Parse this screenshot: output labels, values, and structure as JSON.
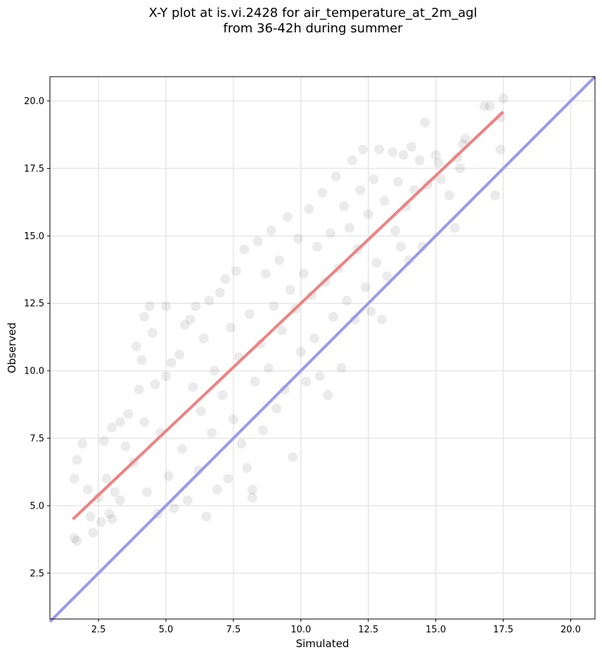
{
  "chart_data": {
    "type": "scatter",
    "title_line1": "X-Y plot at is.vi.2428 for air_temperature_at_2m_agl",
    "title_line2": "from 36-42h during summer",
    "xlabel": "Simulated",
    "ylabel": "Observed",
    "xlim": [
      0.7,
      20.9
    ],
    "ylim": [
      0.8,
      20.9
    ],
    "xticks": [
      2.5,
      5.0,
      7.5,
      10.0,
      12.5,
      15.0,
      17.5,
      20.0
    ],
    "yticks": [
      2.5,
      5.0,
      7.5,
      10.0,
      12.5,
      15.0,
      17.5,
      20.0
    ],
    "xtick_labels": [
      "2.5",
      "5.0",
      "7.5",
      "10.0",
      "12.5",
      "15.0",
      "17.5",
      "20.0"
    ],
    "ytick_labels": [
      "2.5",
      "5.0",
      "7.5",
      "10.0",
      "12.5",
      "15.0",
      "17.5",
      "20.0"
    ],
    "grid": true,
    "point_color": "#000000",
    "point_alpha": 0.08,
    "regression_line": {
      "color": "#f08080",
      "points": [
        [
          1.55,
          4.5
        ],
        [
          17.5,
          19.6
        ]
      ]
    },
    "identity_line": {
      "color": "#9999ee",
      "points": [
        [
          0.7,
          0.7
        ],
        [
          20.9,
          20.9
        ]
      ]
    },
    "points": [
      [
        1.6,
        3.8
      ],
      [
        1.7,
        3.7
      ],
      [
        1.6,
        6.0
      ],
      [
        1.7,
        6.7
      ],
      [
        1.9,
        7.3
      ],
      [
        2.1,
        5.6
      ],
      [
        2.2,
        4.6
      ],
      [
        2.3,
        4.0
      ],
      [
        2.5,
        5.3
      ],
      [
        2.6,
        4.4
      ],
      [
        2.7,
        7.4
      ],
      [
        2.8,
        6.0
      ],
      [
        2.9,
        4.7
      ],
      [
        3.0,
        4.5
      ],
      [
        3.0,
        7.9
      ],
      [
        3.1,
        5.5
      ],
      [
        3.3,
        5.2
      ],
      [
        3.3,
        8.1
      ],
      [
        3.5,
        7.2
      ],
      [
        3.6,
        8.4
      ],
      [
        3.8,
        6.6
      ],
      [
        3.9,
        10.9
      ],
      [
        4.0,
        9.3
      ],
      [
        4.1,
        10.4
      ],
      [
        4.2,
        8.1
      ],
      [
        4.2,
        12.0
      ],
      [
        4.3,
        5.5
      ],
      [
        4.4,
        12.4
      ],
      [
        4.5,
        11.4
      ],
      [
        4.6,
        9.5
      ],
      [
        4.7,
        4.7
      ],
      [
        4.8,
        7.7
      ],
      [
        5.0,
        12.4
      ],
      [
        5.0,
        9.8
      ],
      [
        5.1,
        6.1
      ],
      [
        5.2,
        10.3
      ],
      [
        5.3,
        4.9
      ],
      [
        5.5,
        10.6
      ],
      [
        5.6,
        7.1
      ],
      [
        5.7,
        11.7
      ],
      [
        5.8,
        5.2
      ],
      [
        5.9,
        11.9
      ],
      [
        6.0,
        9.4
      ],
      [
        6.1,
        12.4
      ],
      [
        6.2,
        6.3
      ],
      [
        6.3,
        8.5
      ],
      [
        6.4,
        11.2
      ],
      [
        6.5,
        4.6
      ],
      [
        6.6,
        12.6
      ],
      [
        6.7,
        7.7
      ],
      [
        6.8,
        10.0
      ],
      [
        6.9,
        5.6
      ],
      [
        7.0,
        12.9
      ],
      [
        7.1,
        9.1
      ],
      [
        7.2,
        13.4
      ],
      [
        7.3,
        6.0
      ],
      [
        7.4,
        11.6
      ],
      [
        7.5,
        8.2
      ],
      [
        7.6,
        13.7
      ],
      [
        7.7,
        10.5
      ],
      [
        7.8,
        7.3
      ],
      [
        7.9,
        14.5
      ],
      [
        8.0,
        6.4
      ],
      [
        8.1,
        12.1
      ],
      [
        8.2,
        5.3
      ],
      [
        8.2,
        5.6
      ],
      [
        8.3,
        9.6
      ],
      [
        8.4,
        14.8
      ],
      [
        8.5,
        11.0
      ],
      [
        8.6,
        7.8
      ],
      [
        8.7,
        13.6
      ],
      [
        8.8,
        10.1
      ],
      [
        8.9,
        15.2
      ],
      [
        9.0,
        12.4
      ],
      [
        9.1,
        8.6
      ],
      [
        9.2,
        14.1
      ],
      [
        9.3,
        11.5
      ],
      [
        9.4,
        9.3
      ],
      [
        9.5,
        15.7
      ],
      [
        9.6,
        13.0
      ],
      [
        9.7,
        6.8
      ],
      [
        9.8,
        12.3
      ],
      [
        9.9,
        14.9
      ],
      [
        10.0,
        10.7
      ],
      [
        10.1,
        13.6
      ],
      [
        10.2,
        9.6
      ],
      [
        10.3,
        16.0
      ],
      [
        10.4,
        12.8
      ],
      [
        10.5,
        11.2
      ],
      [
        10.6,
        14.6
      ],
      [
        10.7,
        9.8
      ],
      [
        10.8,
        16.6
      ],
      [
        10.9,
        13.3
      ],
      [
        11.0,
        9.1
      ],
      [
        11.1,
        15.1
      ],
      [
        11.2,
        12.0
      ],
      [
        11.3,
        17.2
      ],
      [
        11.4,
        13.8
      ],
      [
        11.5,
        10.1
      ],
      [
        11.6,
        16.1
      ],
      [
        11.7,
        12.6
      ],
      [
        11.8,
        15.3
      ],
      [
        11.9,
        17.8
      ],
      [
        12.0,
        11.9
      ],
      [
        12.1,
        14.5
      ],
      [
        12.2,
        16.7
      ],
      [
        12.3,
        18.2
      ],
      [
        12.4,
        13.1
      ],
      [
        12.5,
        15.8
      ],
      [
        12.6,
        12.2
      ],
      [
        12.7,
        17.1
      ],
      [
        12.8,
        14.0
      ],
      [
        12.9,
        18.2
      ],
      [
        13.0,
        11.9
      ],
      [
        13.1,
        16.3
      ],
      [
        13.2,
        13.5
      ],
      [
        13.4,
        18.1
      ],
      [
        13.5,
        15.2
      ],
      [
        13.6,
        17.0
      ],
      [
        13.7,
        14.6
      ],
      [
        13.8,
        18.0
      ],
      [
        13.9,
        16.1
      ],
      [
        14.0,
        14.1
      ],
      [
        14.1,
        18.3
      ],
      [
        14.2,
        16.7
      ],
      [
        14.4,
        17.8
      ],
      [
        14.5,
        14.6
      ],
      [
        14.6,
        19.2
      ],
      [
        14.7,
        16.9
      ],
      [
        15.0,
        18.0
      ],
      [
        15.1,
        17.7
      ],
      [
        15.2,
        17.1
      ],
      [
        15.5,
        16.5
      ],
      [
        15.7,
        15.3
      ],
      [
        15.8,
        17.9
      ],
      [
        15.9,
        17.5
      ],
      [
        16.0,
        18.4
      ],
      [
        16.1,
        18.6
      ],
      [
        16.8,
        19.8
      ],
      [
        17.0,
        19.8
      ],
      [
        17.2,
        16.5
      ],
      [
        17.4,
        18.2
      ],
      [
        17.4,
        19.4
      ],
      [
        17.5,
        20.1
      ]
    ]
  }
}
